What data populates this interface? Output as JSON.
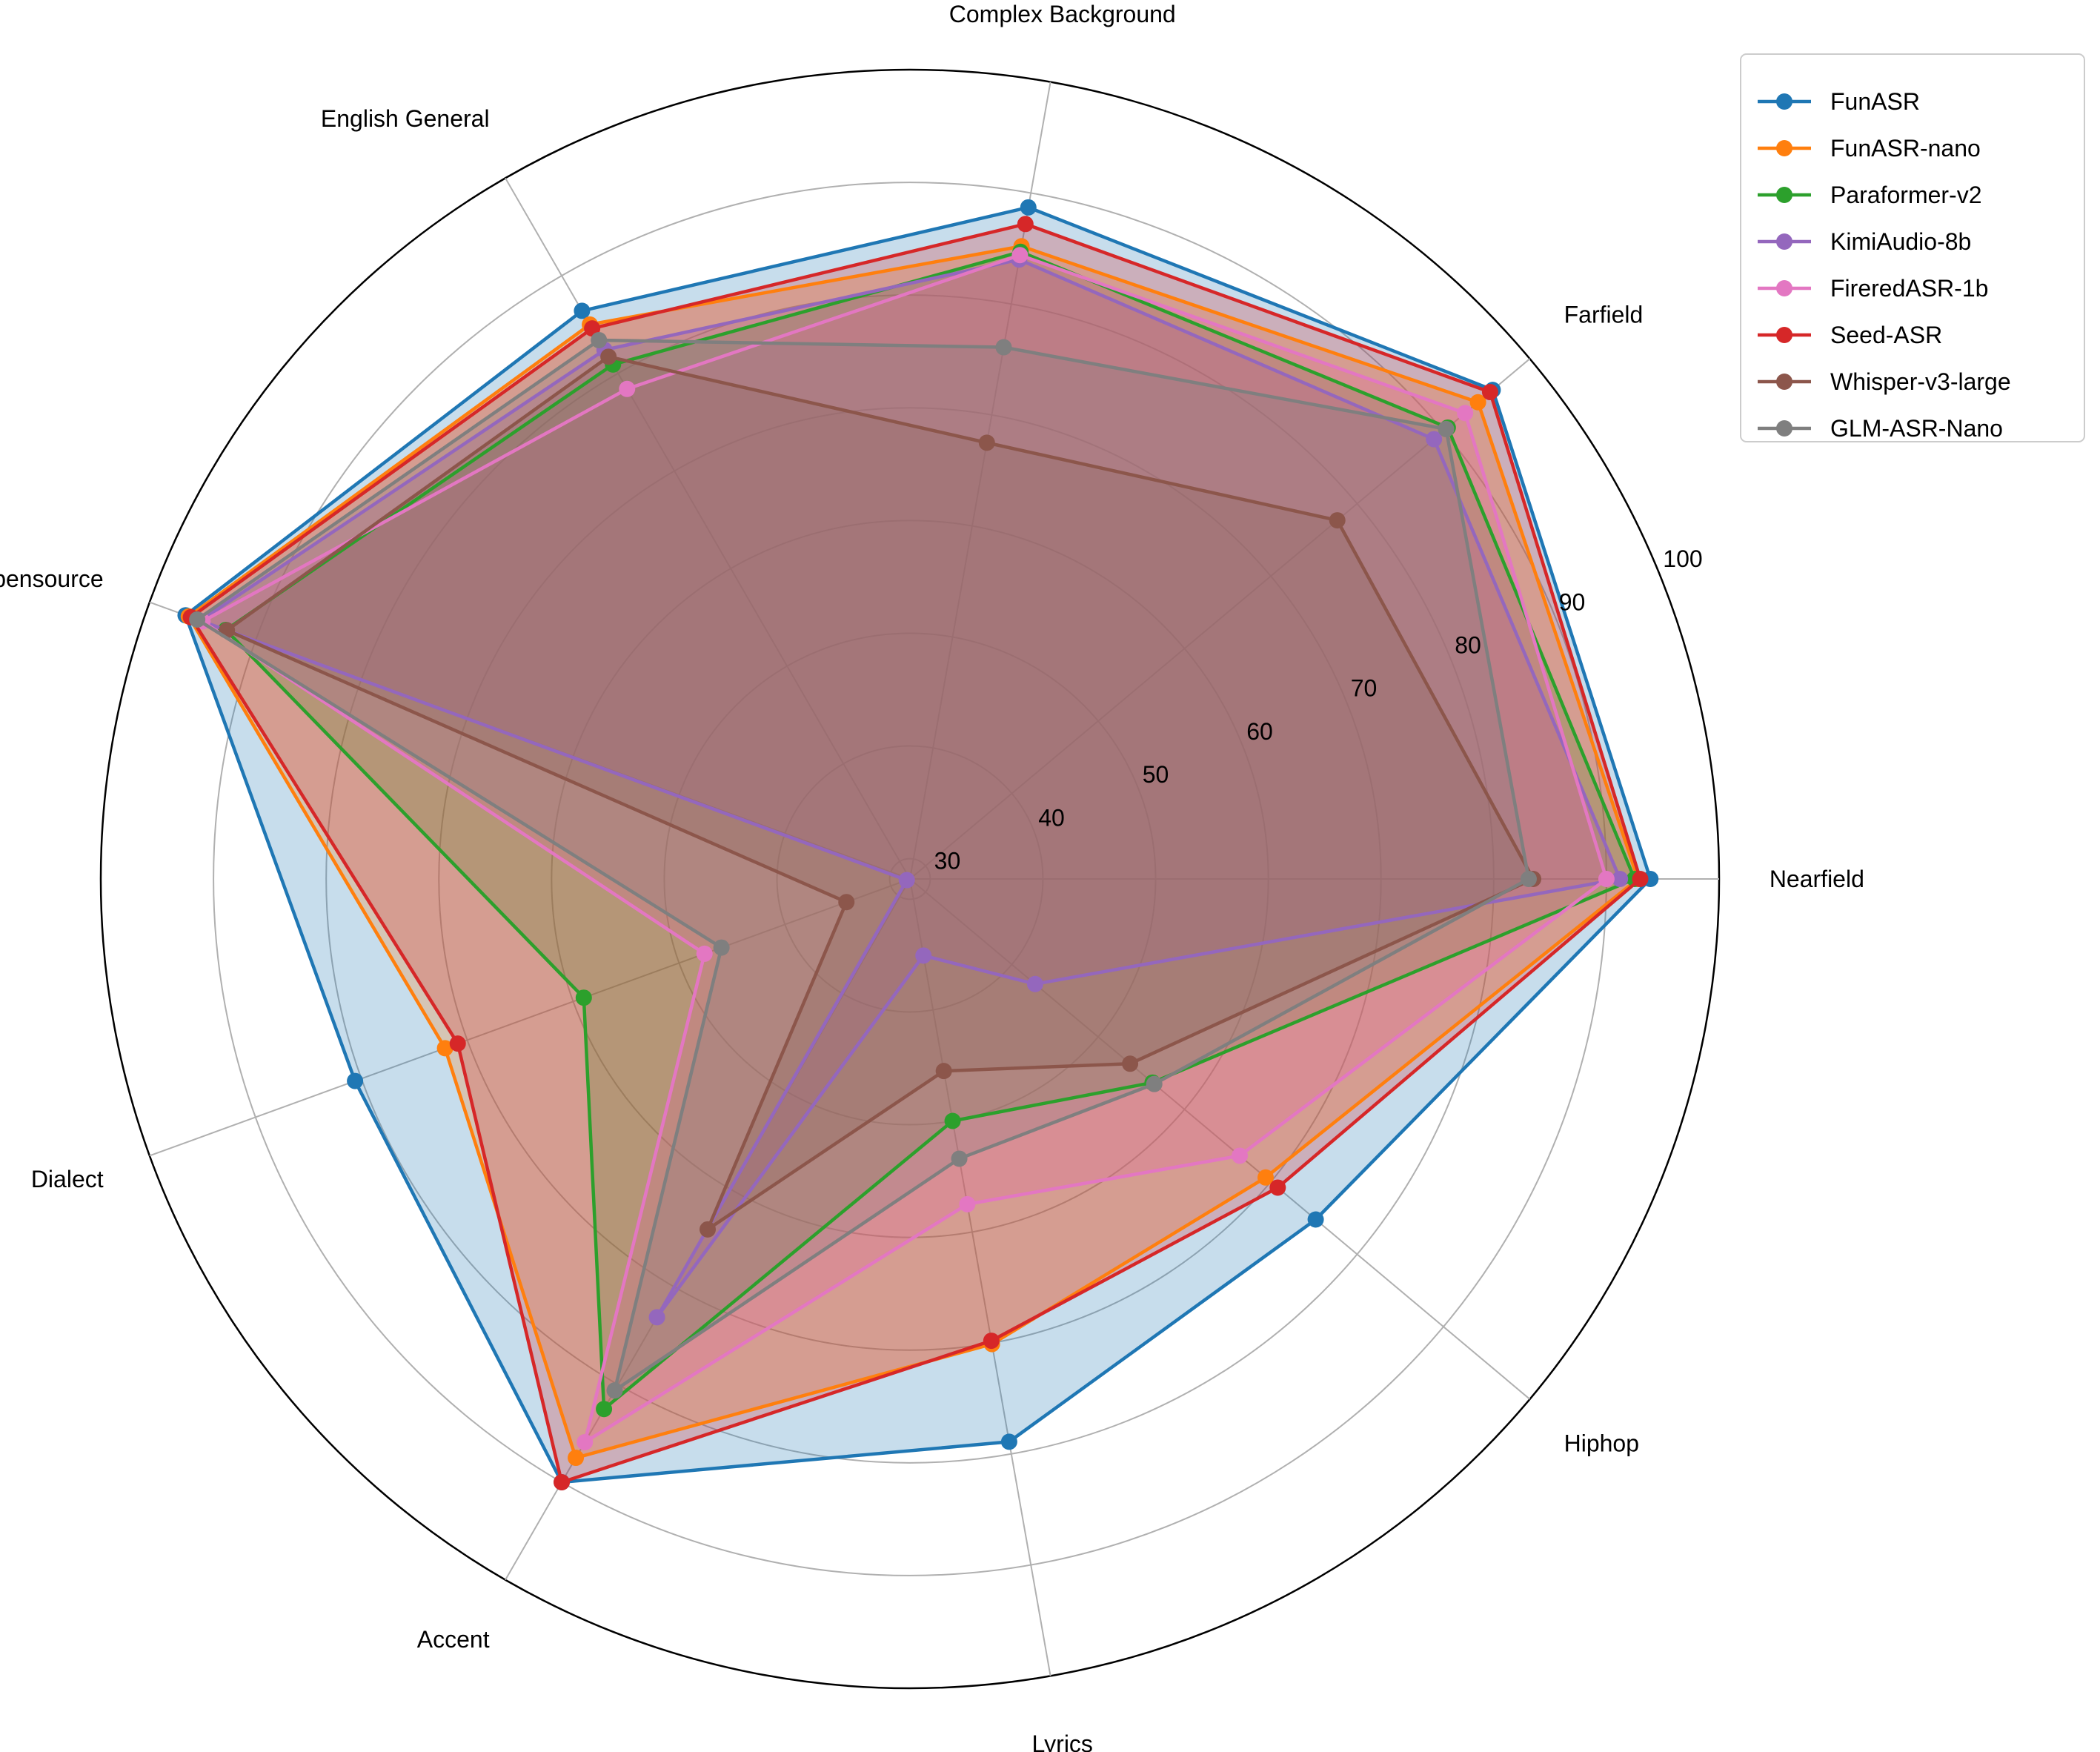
{
  "chart_data": {
    "type": "radar",
    "categories": [
      "Nearfield",
      "Farfield",
      "Complex Background",
      "English General",
      "Opensource",
      "Dialect",
      "Accent",
      "Lyrics",
      "Hiphop"
    ],
    "rlim": [
      28.2,
      100
    ],
    "rticks": [
      30,
      40,
      50,
      60,
      70,
      80,
      90,
      100
    ],
    "grid": true,
    "legend_position": "top-right (outside)",
    "fill_alpha": 0.25,
    "series": [
      {
        "name": "FunASR",
        "color": "#1f77b4",
        "values": [
          93.9,
          95.7,
          88.7,
          86.4,
          96.6,
          80.6,
          90.0,
          78.9,
          75.2
        ]
      },
      {
        "name": "FunASR-nano",
        "color": "#ff7f0e",
        "values": [
          92.8,
          94.0,
          85.2,
          85.0,
          96.3,
          72.1,
          87.5,
          70.1,
          69.4
        ]
      },
      {
        "name": "Paraformer-v2",
        "color": "#2ca02c",
        "values": [
          92.5,
          90.5,
          84.7,
          80.9,
          92.8,
          59.0,
          82.5,
          50.0,
          56.3
        ]
      },
      {
        "name": "KimiAudio-8b",
        "color": "#9467bd",
        "values": [
          91.2,
          88.9,
          84.0,
          82.4,
          95.2,
          28.5,
          73.1,
          35.1,
          42.7
        ]
      },
      {
        "name": "FireredASR-1b",
        "color": "#e377c2",
        "values": [
          90.0,
          92.5,
          84.4,
          78.4,
          95.0,
          47.6,
          85.9,
          57.5,
          66.4
        ]
      },
      {
        "name": "Seed-ASR",
        "color": "#d62728",
        "values": [
          93.0,
          95.4,
          87.2,
          84.6,
          96.1,
          70.9,
          90.0,
          69.8,
          70.8
        ]
      },
      {
        "name": "Whisper-v3-large",
        "color": "#8c564b",
        "values": [
          83.5,
          77.7,
          67.5,
          81.7,
          92.7,
          34.2,
          64.1,
          45.5,
          53.7
        ]
      },
      {
        "name": "GLM-ASR-Nano",
        "color": "#7f7f7f",
        "values": [
          83.1,
          90.3,
          76.1,
          83.4,
          95.5,
          46.0,
          80.6,
          53.4,
          56.5
        ]
      }
    ]
  }
}
